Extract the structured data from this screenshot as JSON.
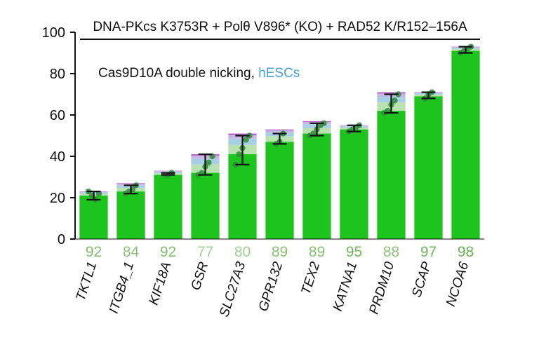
{
  "chart_data": {
    "type": "bar",
    "title": "DNA-PKcs K3753R + Polθ V896* (KO) + RAD52 K/R152–156A",
    "annotation": {
      "text": "Cas9D10A double nicking, ",
      "highlight": "hESCs",
      "highlight_color": "#4a9fd8"
    },
    "xlabel": "",
    "ylabel": "",
    "ylim": [
      0,
      100
    ],
    "yticks": [
      0,
      20,
      40,
      60,
      80,
      100
    ],
    "grid": false,
    "categories": [
      "TKTL1",
      "ITGB4_1",
      "KIF18A",
      "GSR",
      "SLC27A3",
      "GPR132",
      "TEX2",
      "KATNA1",
      "PRDM10",
      "SCAP",
      "NCOA6"
    ],
    "values": [
      21,
      23,
      31,
      32,
      41,
      47,
      51,
      53,
      62,
      69,
      91
    ],
    "stacked_top": [
      23,
      27,
      33,
      41,
      51,
      53,
      57,
      55,
      71,
      71,
      93
    ],
    "error_low": [
      19,
      22,
      31,
      31,
      36,
      46,
      50,
      52,
      61,
      68,
      90
    ],
    "error_high": [
      23,
      26,
      32,
      41,
      50,
      51,
      56,
      55,
      70,
      71,
      93
    ],
    "points": [
      [
        23,
        21,
        19,
        22
      ],
      [
        22,
        23,
        24,
        26
      ],
      [
        31,
        31,
        32
      ],
      [
        31,
        32,
        35,
        37,
        40
      ],
      [
        36,
        41,
        44,
        48,
        50
      ],
      [
        46,
        47,
        51
      ],
      [
        50,
        51,
        53,
        55,
        56
      ],
      [
        52,
        53,
        54,
        55
      ],
      [
        61,
        62,
        65,
        67,
        70
      ],
      [
        68,
        70,
        71
      ],
      [
        90,
        91,
        92,
        93
      ]
    ],
    "percent_labels": [
      "92",
      "84",
      "92",
      "77",
      "80",
      "89",
      "89",
      "95",
      "88",
      "97",
      "98"
    ],
    "percent_colors": [
      "#7fbf6a",
      "#8ec27b",
      "#7fbf6a",
      "#a6d098",
      "#9fcf90",
      "#86c173",
      "#86c173",
      "#6fb85a",
      "#8ec27b",
      "#6db55a",
      "#66b352"
    ],
    "colors": {
      "bar": "#1ec41e",
      "stack_band_1": "#b9e2b0",
      "stack_band_2": "#a8cfe6",
      "stack_band_3": "#c8b7e6",
      "stack_band_4": "#b05fc0",
      "points": "#2e8b3a",
      "error": "#111111",
      "axis": "#111111"
    }
  }
}
